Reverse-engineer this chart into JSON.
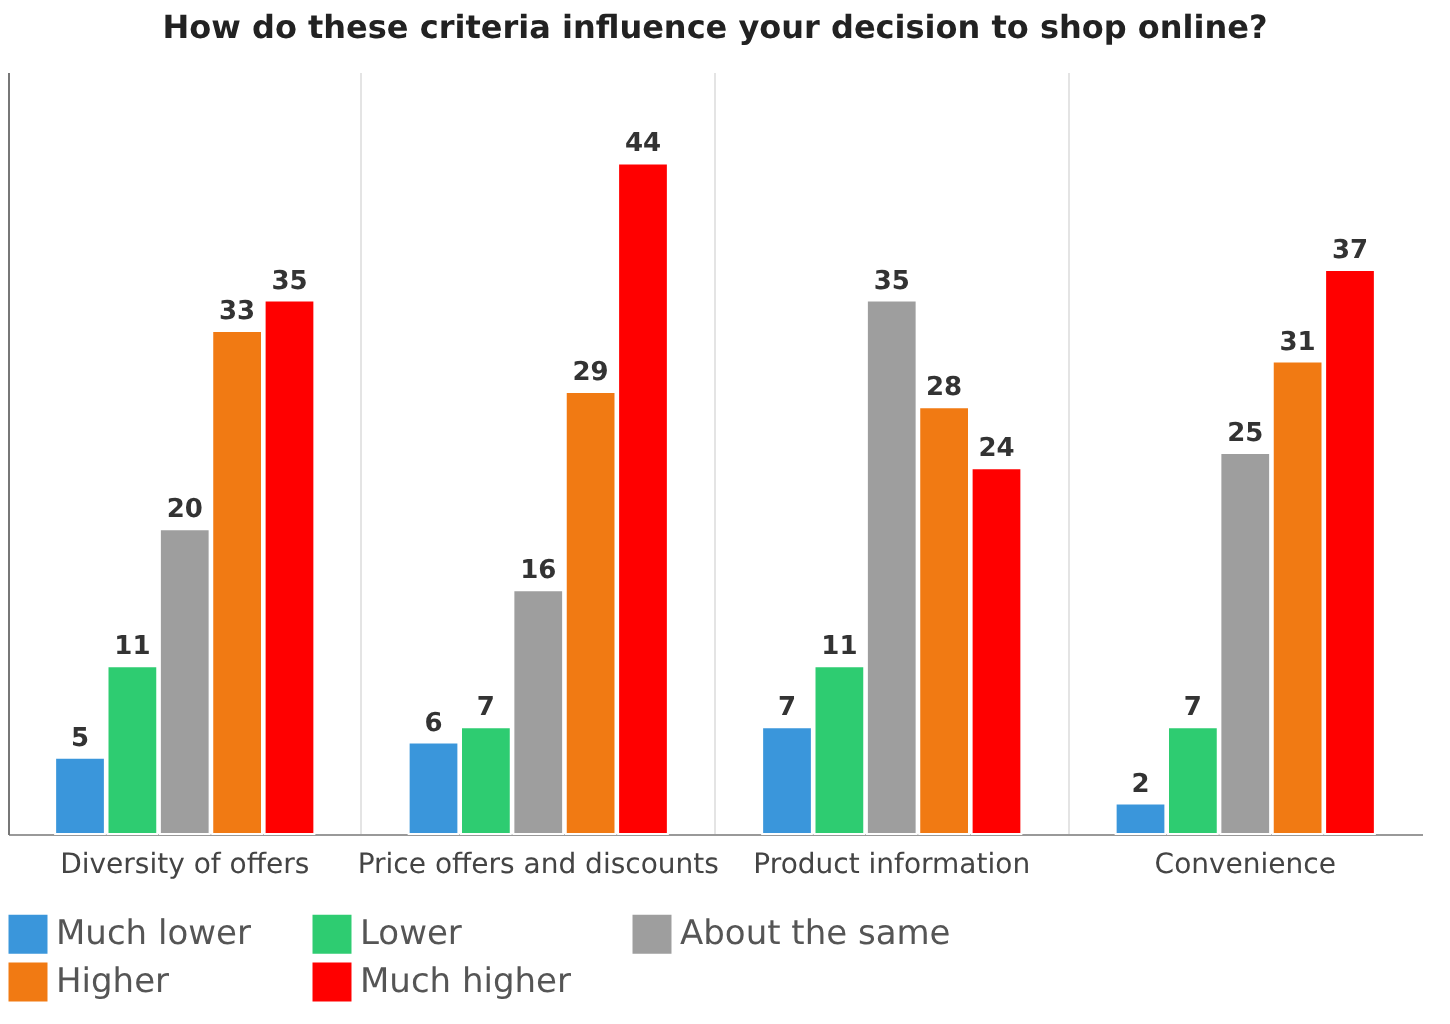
{
  "chart_data": {
    "type": "bar",
    "title": "How do these criteria influence your decision to shop online?",
    "categories": [
      "Diversity of offers",
      "Price offers and discounts",
      "Product information",
      "Convenience"
    ],
    "series": [
      {
        "name": "Much lower",
        "color": "#3a96db",
        "values": [
          5,
          6,
          7,
          2
        ]
      },
      {
        "name": "Lower",
        "color": "#2ecc71",
        "values": [
          11,
          7,
          11,
          7
        ]
      },
      {
        "name": "About the same",
        "color": "#9e9e9e",
        "values": [
          20,
          16,
          35,
          25
        ]
      },
      {
        "name": "Higher",
        "color": "#f17a13",
        "values": [
          33,
          29,
          28,
          31
        ]
      },
      {
        "name": "Much higher",
        "color": "#ff0000",
        "values": [
          35,
          44,
          24,
          37
        ]
      }
    ],
    "ylim": [
      0,
      50
    ],
    "tick_labels": "x",
    "grid": true,
    "legend": "bottom",
    "data_labels": true
  }
}
